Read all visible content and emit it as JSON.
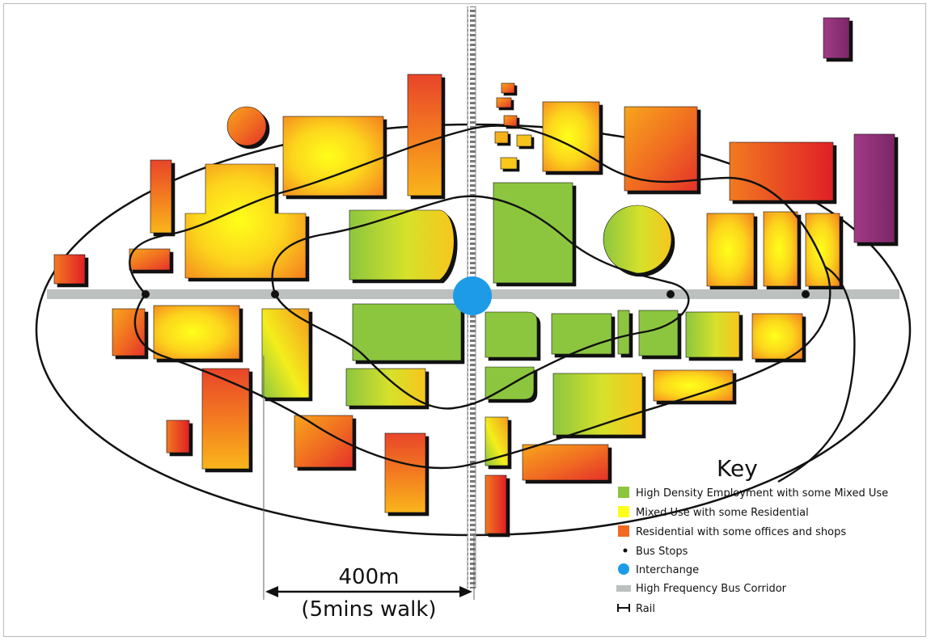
{
  "distance": {
    "label": "400m",
    "sublabel": "(5mins walk)"
  },
  "key": {
    "title": "Key",
    "items": [
      {
        "label": "High Density Employment with some Mixed Use",
        "symbol": "square",
        "color": "#8cc63f"
      },
      {
        "label": "Mixed Use with some Residential",
        "symbol": "square",
        "color": "#ffff1a"
      },
      {
        "label": "Residential with some offices and shops",
        "symbol": "square",
        "color": "#f26a21"
      },
      {
        "label": "Bus Stops",
        "symbol": "dot",
        "color": "#111111"
      },
      {
        "label": "Interchange",
        "symbol": "circle",
        "color": "#1e9be6"
      },
      {
        "label": "High Frequency Bus Corridor",
        "symbol": "bar",
        "color": "#bcc0bf"
      },
      {
        "label": "Rail",
        "symbol": "rail",
        "color": "#111111"
      }
    ]
  },
  "colors": {
    "employment": "#8cc63f",
    "mixed_use": "#ffff1a",
    "residential_light": "#f5a21b",
    "residential": "#ee5a22",
    "residential_dark": "#dd1f26",
    "landmark": "#8b2e74",
    "interchange": "#1e9be6",
    "bus_corridor": "#bcc0bf",
    "rail": "#6f6f6f"
  }
}
